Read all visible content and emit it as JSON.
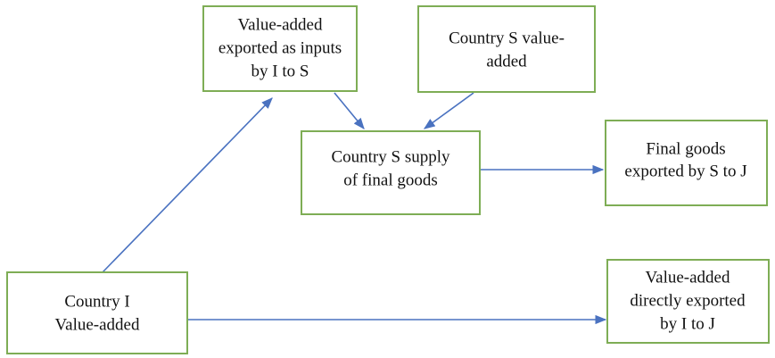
{
  "nodes": [
    {
      "label": [
        "Value-added",
        "exported as inputs",
        "by I to S"
      ]
    },
    {
      "label": [
        "Country S value-",
        "added"
      ]
    },
    {
      "label": [
        "Country S supply",
        "of final goods"
      ]
    },
    {
      "label": [
        "Final goods",
        "exported by S to J"
      ]
    },
    {
      "label": [
        "Country I",
        "Value-added"
      ]
    },
    {
      "label": [
        "Value-added",
        "directly exported",
        "by I to J"
      ]
    }
  ]
}
